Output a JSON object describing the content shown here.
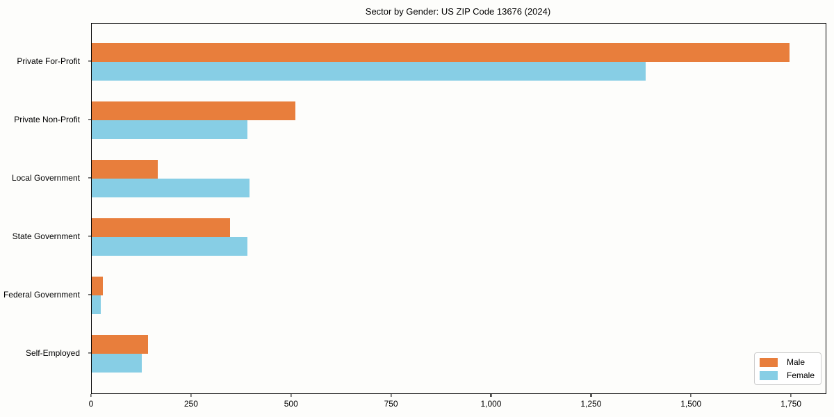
{
  "chart_data": {
    "type": "bar",
    "orientation": "horizontal",
    "title": "Sector by Gender: US ZIP Code 13676 (2024)",
    "categories": [
      "Private For-Profit",
      "Private Non-Profit",
      "Local Government",
      "State Government",
      "Federal Government",
      "Self-Employed"
    ],
    "series": [
      {
        "name": "Male",
        "color": "#E87E3C",
        "values": [
          1745,
          510,
          165,
          345,
          28,
          140
        ]
      },
      {
        "name": "Female",
        "color": "#87CEE5",
        "values": [
          1385,
          390,
          395,
          390,
          23,
          125
        ]
      }
    ],
    "xlim": [
      0,
      1835
    ],
    "xticks": [
      {
        "value": 0,
        "label": "0"
      },
      {
        "value": 250,
        "label": "250"
      },
      {
        "value": 500,
        "label": "500"
      },
      {
        "value": 750,
        "label": "750"
      },
      {
        "value": 1000,
        "label": "1,000"
      },
      {
        "value": 1250,
        "label": "1,250"
      },
      {
        "value": 1500,
        "label": "1,500"
      },
      {
        "value": 1750,
        "label": "1,750"
      }
    ],
    "xlabel": "",
    "ylabel": "",
    "grid": false,
    "legend_position": "lower right"
  }
}
